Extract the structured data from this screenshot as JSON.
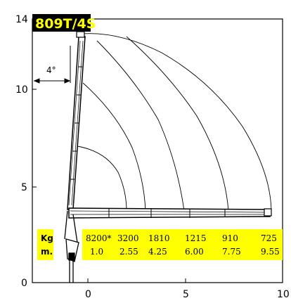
{
  "model_label": "809T/4S",
  "angle_label": "4°",
  "axes": {
    "y_ticks": [
      "14",
      "10",
      "5",
      "0"
    ],
    "x_ticks": [
      "0",
      "5",
      "10"
    ]
  },
  "table": {
    "kg_label": "Kg",
    "m_label": "m.",
    "kg_values": [
      "8200*",
      "3200",
      "1810",
      "1215",
      "910",
      "725"
    ],
    "m_values": [
      "1.0",
      "2.55",
      "4.25",
      "6.00",
      "7.75",
      "9.55"
    ]
  },
  "colors": {
    "label_bg": "#000000",
    "label_text": "#ffff00",
    "table_bg": "#ffff00",
    "line": "#000000"
  }
}
